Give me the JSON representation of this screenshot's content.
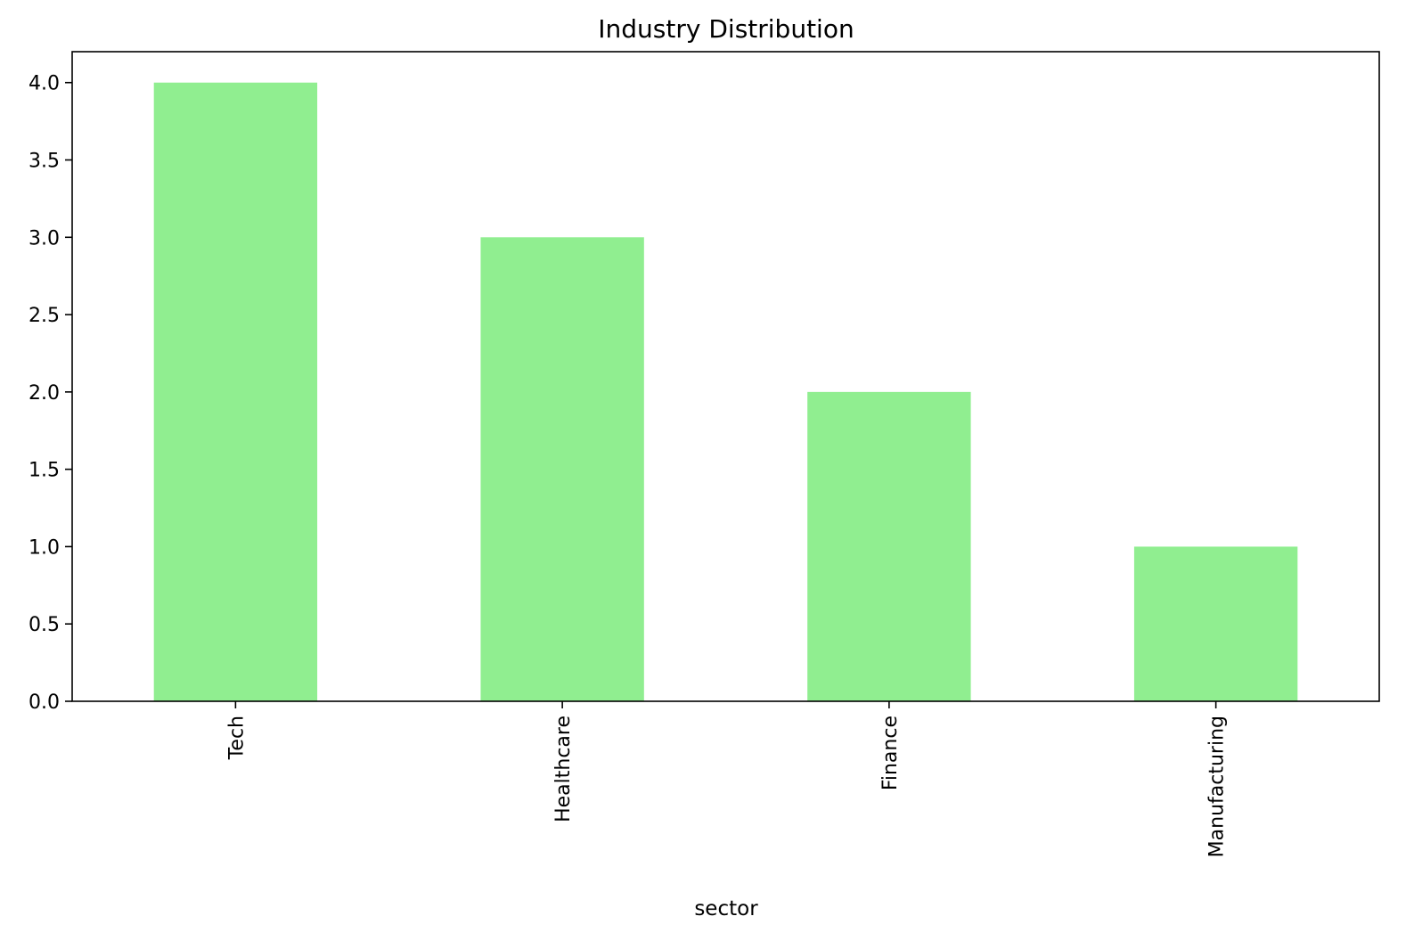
{
  "chart_data": {
    "type": "bar",
    "title": "Industry Distribution",
    "xlabel": "sector",
    "ylabel": "",
    "categories": [
      "Tech",
      "Healthcare",
      "Finance",
      "Manufacturing"
    ],
    "values": [
      4,
      3,
      2,
      1
    ],
    "ylim": [
      0,
      4.2
    ],
    "yticks": [
      "0.0",
      "0.5",
      "1.0",
      "1.5",
      "2.0",
      "2.5",
      "3.0",
      "3.5",
      "4.0"
    ],
    "bar_color": "#90ee90",
    "grid": false,
    "legend": "none",
    "tick_label_rotation": "vertical"
  }
}
